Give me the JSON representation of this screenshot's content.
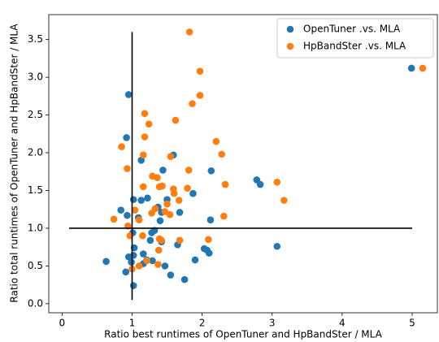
{
  "chart_data": {
    "type": "scatter",
    "xlabel": "Ratio best runtimes of OpenTuner and HpBandSter / MLA",
    "ylabel": "Ratio total runtimes of OpenTuner and HpBandSter / MLA",
    "xlim": [
      -0.19,
      5.36
    ],
    "ylim": [
      -0.12,
      3.83
    ],
    "xticks": [
      0,
      1,
      2,
      3,
      4,
      5
    ],
    "yticks": [
      {
        "value": 0,
        "label": "0.0"
      },
      0.5,
      {
        "value": 1,
        "label": "1.0"
      },
      1.5,
      {
        "value": 2,
        "label": "2.0"
      },
      2.5,
      {
        "value": 3,
        "label": "3.0"
      },
      3.5
    ],
    "legend": "upper right",
    "series": [
      {
        "name": "OpenTuner .vs. MLA",
        "color": "#1f77b4",
        "x": [
          0.95,
          0.92,
          1.13,
          1.59,
          1.44,
          2.13,
          1.87,
          2.78,
          2.83,
          4.99,
          1.02,
          1.13,
          1.22,
          0.84,
          0.93,
          1.09,
          1.37,
          1.5,
          1.42,
          1.4,
          1.68,
          2.12,
          1.01,
          1.03,
          1.02,
          0.95,
          0.99,
          0.63,
          0.91,
          1.02,
          1.16,
          1.21,
          1.16,
          1.29,
          1.26,
          1.28,
          1.32,
          1.42,
          1.47,
          1.55,
          1.65,
          1.75,
          1.9,
          2.03,
          2.07,
          2.1,
          3.07
        ],
        "y": [
          2.77,
          2.2,
          1.9,
          1.97,
          1.77,
          1.76,
          1.46,
          1.64,
          1.58,
          3.12,
          1.38,
          1.37,
          1.4,
          1.24,
          1.17,
          1.14,
          1.28,
          1.38,
          1.21,
          1.1,
          1.21,
          1.11,
          0.94,
          0.74,
          0.64,
          0.62,
          0.55,
          0.56,
          0.42,
          0.24,
          0.66,
          0.58,
          0.53,
          0.57,
          0.84,
          0.94,
          0.97,
          0.82,
          0.5,
          0.38,
          0.78,
          0.32,
          0.58,
          0.73,
          0.71,
          0.67,
          0.76
        ]
      },
      {
        "name": "HpBandSter .vs. MLA",
        "color": "#ff7f0e",
        "x": [
          1.82,
          1.97,
          1.86,
          1.97,
          1.18,
          1.24,
          1.62,
          1.18,
          0.85,
          1.16,
          1.55,
          2.2,
          2.28,
          0.93,
          1.81,
          1.29,
          1.36,
          1.43,
          1.39,
          1.16,
          1.59,
          1.6,
          1.79,
          2.33,
          1.67,
          1.5,
          1.33,
          1.47,
          1.54,
          1.28,
          1.04,
          0.74,
          1.1,
          2.31,
          3.07,
          3.17,
          5.15,
          0.94,
          0.97,
          1.15,
          1.39,
          1.42,
          1.68,
          2.09,
          1.38,
          1.21,
          1.1,
          1.37,
          1.0
        ],
        "y": [
          3.6,
          3.08,
          2.65,
          2.76,
          2.52,
          2.38,
          2.43,
          2.21,
          2.08,
          1.97,
          1.95,
          2.15,
          1.98,
          1.79,
          1.77,
          1.69,
          1.67,
          1.56,
          1.55,
          1.55,
          1.52,
          1.46,
          1.53,
          1.58,
          1.37,
          1.32,
          1.26,
          1.22,
          1.18,
          1.2,
          1.24,
          1.12,
          1.11,
          1.16,
          1.61,
          1.37,
          3.12,
          1.03,
          0.9,
          0.9,
          0.86,
          0.84,
          0.84,
          0.85,
          0.71,
          0.57,
          0.5,
          0.52,
          0.46
        ]
      }
    ],
    "lines": [
      {
        "color": "#000000",
        "x": [
          1,
          1
        ],
        "y": [
          0.05,
          3.6
        ]
      },
      {
        "color": "#000000",
        "x": [
          0.1,
          5
        ],
        "y": [
          1,
          1
        ]
      }
    ]
  }
}
